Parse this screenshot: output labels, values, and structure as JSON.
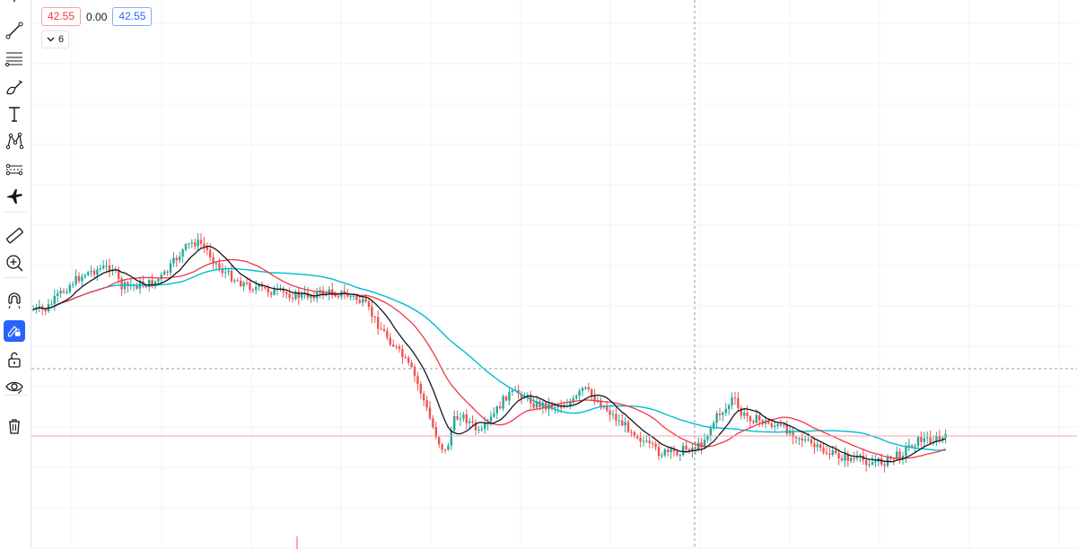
{
  "legend": {
    "bid": "42.55",
    "spread": "0.00",
    "ask": "42.55",
    "indicators_count": "6"
  },
  "toolbar": {
    "items": [
      {
        "icon": "cursor-icon"
      },
      {
        "icon": "trend-line-icon"
      },
      {
        "icon": "fib-retracement-icon"
      },
      {
        "icon": "brush-icon"
      },
      {
        "icon": "text-icon"
      },
      {
        "icon": "pattern-icon"
      },
      {
        "icon": "prediction-icon"
      },
      {
        "icon": "icon-set-icon"
      },
      {
        "icon": "ruler-icon"
      },
      {
        "icon": "zoom-in-icon"
      },
      {
        "icon": "magnet-icon"
      },
      {
        "icon": "lock-drawing-icon",
        "active": true
      },
      {
        "icon": "unlock-icon"
      },
      {
        "icon": "eye-icon"
      },
      {
        "icon": "trash-icon"
      }
    ]
  },
  "colors": {
    "up": "#26a69a",
    "down": "#ef5350",
    "ma_fast": "#131722",
    "ma_mid": "#f23645",
    "ma_slow": "#00bcd4",
    "price_line": "#f5a3a9",
    "crosshair": "#9598a1",
    "grid": "#f0f3fa",
    "accent": "#2962ff"
  },
  "chart_data": {
    "type": "candlestick",
    "indicators": [
      "moving-average",
      "moving-average",
      "moving-average"
    ],
    "last_price": 42.55,
    "price_path": [
      [
        0,
        345
      ],
      [
        15,
        346
      ],
      [
        30,
        330
      ],
      [
        45,
        315
      ],
      [
        60,
        305
      ],
      [
        75,
        300
      ],
      [
        90,
        297
      ],
      [
        100,
        320
      ],
      [
        115,
        318
      ],
      [
        135,
        316
      ],
      [
        150,
        305
      ],
      [
        160,
        290
      ],
      [
        170,
        278
      ],
      [
        180,
        270
      ],
      [
        190,
        272
      ],
      [
        200,
        285
      ],
      [
        210,
        300
      ],
      [
        225,
        310
      ],
      [
        240,
        318
      ],
      [
        255,
        322
      ],
      [
        270,
        325
      ],
      [
        285,
        328
      ],
      [
        300,
        330
      ],
      [
        315,
        328
      ],
      [
        330,
        326
      ],
      [
        345,
        327
      ],
      [
        360,
        332
      ],
      [
        372,
        340
      ],
      [
        385,
        360
      ],
      [
        400,
        380
      ],
      [
        415,
        400
      ],
      [
        425,
        415
      ],
      [
        435,
        440
      ],
      [
        445,
        470
      ],
      [
        455,
        495
      ],
      [
        462,
        505
      ],
      [
        470,
        470
      ],
      [
        478,
        462
      ],
      [
        490,
        472
      ],
      [
        500,
        485
      ],
      [
        510,
        470
      ],
      [
        520,
        455
      ],
      [
        530,
        440
      ],
      [
        545,
        438
      ],
      [
        560,
        450
      ],
      [
        575,
        452
      ],
      [
        590,
        452
      ],
      [
        605,
        447
      ],
      [
        615,
        433
      ],
      [
        625,
        442
      ],
      [
        640,
        455
      ],
      [
        655,
        470
      ],
      [
        670,
        480
      ],
      [
        685,
        495
      ],
      [
        700,
        505
      ],
      [
        715,
        505
      ],
      [
        730,
        500
      ],
      [
        745,
        497
      ],
      [
        755,
        480
      ],
      [
        765,
        462
      ],
      [
        775,
        455
      ],
      [
        782,
        443
      ],
      [
        790,
        462
      ],
      [
        800,
        465
      ],
      [
        815,
        470
      ],
      [
        830,
        475
      ],
      [
        845,
        480
      ],
      [
        860,
        490
      ],
      [
        875,
        500
      ],
      [
        890,
        506
      ],
      [
        905,
        510
      ],
      [
        920,
        512
      ],
      [
        935,
        515
      ],
      [
        950,
        515
      ],
      [
        960,
        510
      ],
      [
        970,
        505
      ],
      [
        980,
        495
      ],
      [
        990,
        490
      ],
      [
        1000,
        490
      ],
      [
        1010,
        490
      ],
      [
        1022,
        488
      ]
    ]
  }
}
